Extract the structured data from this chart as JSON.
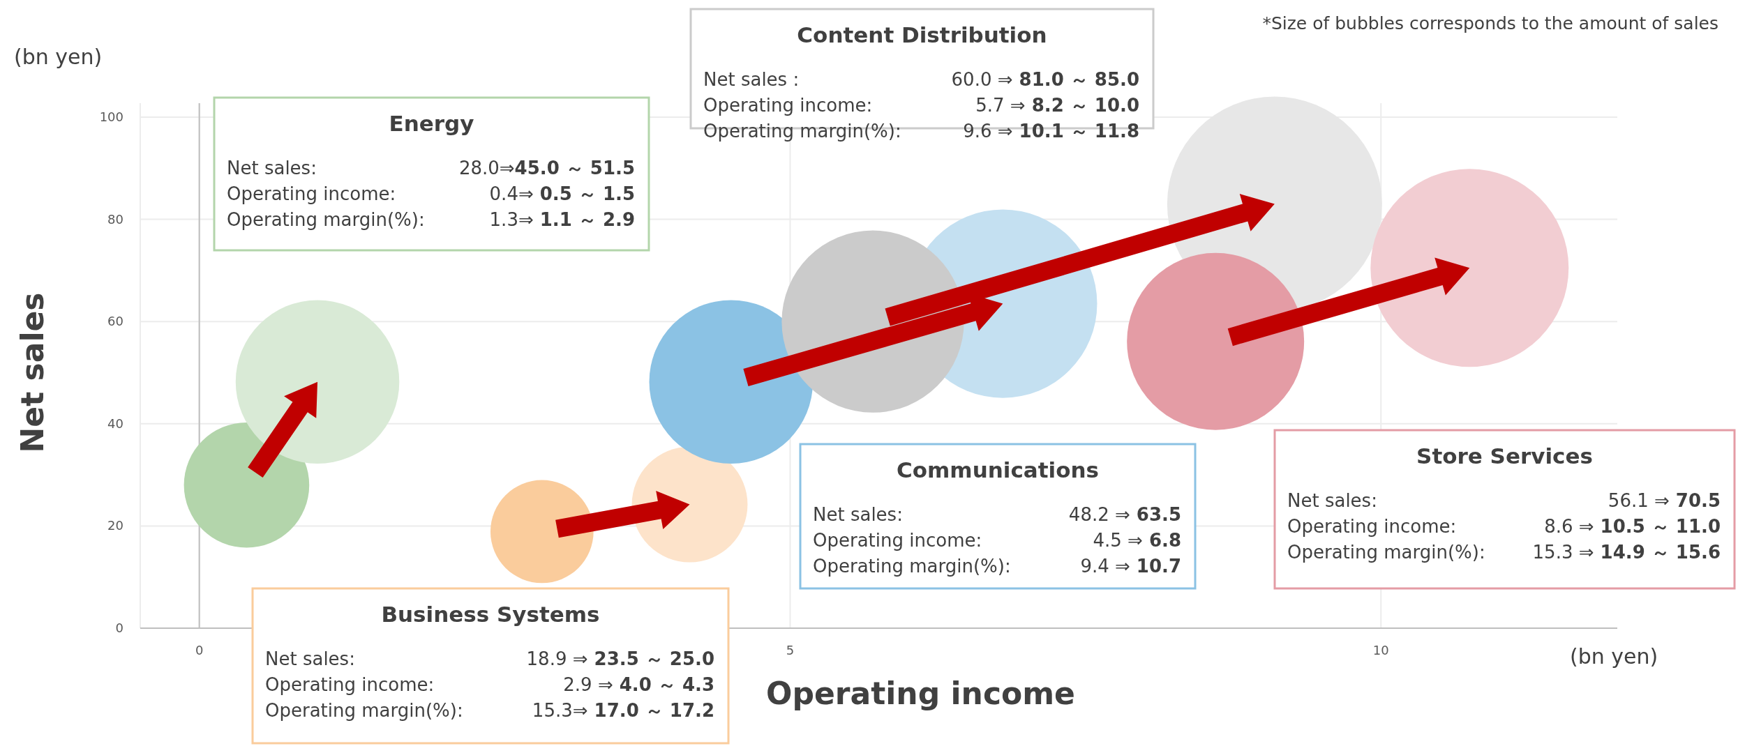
{
  "chart_data": {
    "type": "bubble",
    "xlabel": "Operating income",
    "ylabel": "Net sales",
    "xlim": [
      -0.5,
      12
    ],
    "ylim": [
      0,
      100
    ],
    "xticks": [
      0,
      5,
      10
    ],
    "yticks": [
      0,
      20,
      40,
      60,
      80,
      100
    ],
    "grid": true,
    "series": [
      {
        "x": [
          0.4,
          2.9,
          4.5,
          5.7,
          8.6
        ],
        "values": [
          28,
          18.9,
          48.2,
          60,
          56.1
        ],
        "sizes": [
          0.34,
          0.23,
          0.58,
          0.72,
          0.68
        ],
        "colors": [
          "#b3d5ab",
          "#facc9c",
          "#8bc2e4",
          "#cbcbcb",
          "#e49ca5"
        ]
      },
      {
        "x": [
          1.0,
          4.15,
          6.8,
          9.1,
          10.75
        ],
        "values": [
          48.2,
          24.2,
          63.5,
          83,
          70.5
        ],
        "sizes": [
          0.58,
          0.29,
          0.77,
          1,
          0.85
        ],
        "colors": [
          "#d9ead6",
          "#fde3ca",
          "#c4e0f1",
          "#e7e7e7",
          "#f2cdd2"
        ]
      }
    ],
    "annotations": [
      "*Size of bubbles corresponds to the amount of sales",
      "(bn yen)",
      "(bn yen)",
      "Energy",
      "Net sales: 28.0⇒45.0 ～ 51.5",
      "Operating income: 0.4⇒ 0.5 ～ 1.5",
      "Operating margin(%): 1.3⇒ 1.1 ～ 2.9",
      "Business Systems",
      "Net sales: 18.9 ⇒ 23.5 ～ 25.0",
      "Operating income: 2.9 ⇒ 4.0 ～ 4.3",
      "Operating margin(%): 15.3⇒ 17.0 ～ 17.2",
      "Communications",
      "Net sales: 48.2 ⇒ 63.5",
      "Operating income: 4.5 ⇒ 6.8",
      "Operating margin(%): 9.4 ⇒ 10.7",
      "Content Distribution",
      "Net sales : 60.0 ⇒ 81.0 ～ 85.0",
      "Operating income: 5.7 ⇒ 8.2 ～ 10.0",
      "Operating margin(%): 9.6 ⇒ 10.1 ～ 11.8",
      "Store Services",
      "Net sales: 56.1 ⇒ 70.5",
      "Operating income: 8.6 ⇒ 10.5 ～ 11.0",
      "Operating margin(%): 15.3 ⇒ 14.9 ～ 15.6"
    ]
  }
}
